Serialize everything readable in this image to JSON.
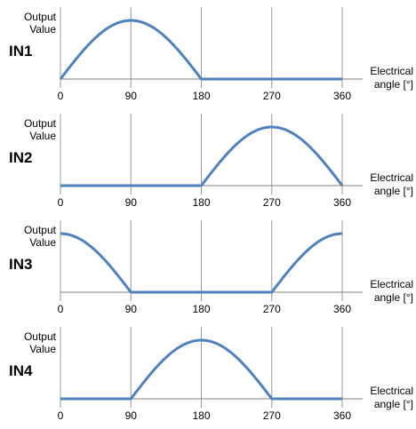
{
  "chart_data": [
    {
      "type": "line",
      "row_label": "IN1",
      "ylabel_line1": "Output",
      "ylabel_line2": "Value",
      "xlabel_line1": "Electrical",
      "xlabel_line2": "angle [°]",
      "xlim": [
        0,
        360
      ],
      "ylim": [
        0,
        1
      ],
      "x_ticks": [
        "0",
        "90",
        "180",
        "270",
        "360"
      ],
      "grid": true,
      "series": [
        {
          "x": [
            0,
            45,
            90,
            135,
            180,
            270,
            360
          ],
          "y": [
            0,
            0.71,
            1,
            0.71,
            0,
            0,
            0
          ]
        }
      ]
    },
    {
      "type": "line",
      "row_label": "IN2",
      "ylabel_line1": "Output",
      "ylabel_line2": "Value",
      "xlabel_line1": "Electrical",
      "xlabel_line2": "angle [°]",
      "xlim": [
        0,
        360
      ],
      "ylim": [
        0,
        1
      ],
      "x_ticks": [
        "0",
        "90",
        "180",
        "270",
        "360"
      ],
      "grid": true,
      "series": [
        {
          "x": [
            0,
            90,
            180,
            225,
            270,
            315,
            360
          ],
          "y": [
            0,
            0,
            0,
            0.71,
            1,
            0.71,
            0
          ]
        }
      ]
    },
    {
      "type": "line",
      "row_label": "IN3",
      "ylabel_line1": "Output",
      "ylabel_line2": "Value",
      "xlabel_line1": "Electrical",
      "xlabel_line2": "angle [°]",
      "xlim": [
        0,
        360
      ],
      "ylim": [
        0,
        1
      ],
      "x_ticks": [
        "0",
        "90",
        "180",
        "270",
        "360"
      ],
      "grid": true,
      "series": [
        {
          "x": [
            0,
            45,
            90,
            180,
            270,
            315,
            360
          ],
          "y": [
            1,
            0.71,
            0,
            0,
            0,
            0.71,
            1
          ]
        }
      ]
    },
    {
      "type": "line",
      "row_label": "IN4",
      "ylabel_line1": "Output",
      "ylabel_line2": "Value",
      "xlabel_line1": "Electrical",
      "xlabel_line2": "angle [°]",
      "xlim": [
        0,
        360
      ],
      "ylim": [
        0,
        1
      ],
      "x_ticks": [
        "0",
        "90",
        "180",
        "270",
        "360"
      ],
      "grid": true,
      "series": [
        {
          "x": [
            0,
            90,
            135,
            180,
            225,
            270,
            360
          ],
          "y": [
            0,
            0,
            0.71,
            1,
            0.71,
            0,
            0
          ]
        }
      ]
    }
  ],
  "colors": {
    "curve": "#4f81bd",
    "grid": "#999999",
    "baseline": "#808080"
  }
}
